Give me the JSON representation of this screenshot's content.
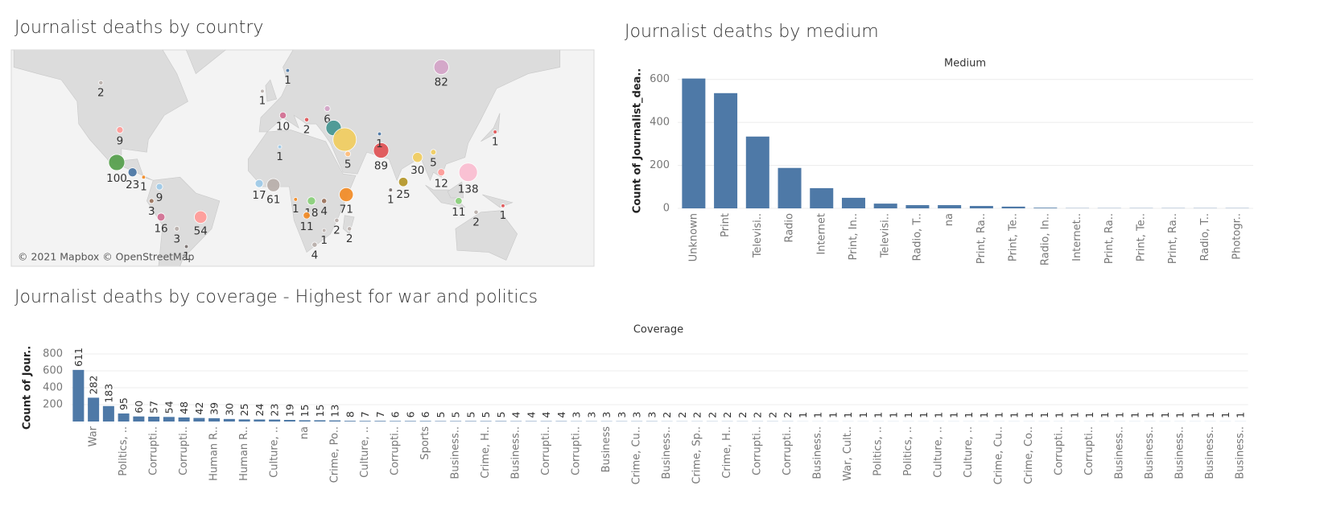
{
  "chart_data": [
    {
      "type": "map",
      "title": "Journalist deaths by country",
      "attribution": "© 2021 Mapbox © OpenStreetMap",
      "points": [
        {
          "lon": -110,
          "lat": 57,
          "value": 2,
          "color": "#bab0ac"
        },
        {
          "lon": -98,
          "lat": 37,
          "value": 9,
          "color": "#ff9d9a"
        },
        {
          "lon": -100,
          "lat": 19,
          "value": 100,
          "color": "#59a14f"
        },
        {
          "lon": -90,
          "lat": 13,
          "value": 23,
          "color": "#4e79a7"
        },
        {
          "lon": -83,
          "lat": 10,
          "value": 1,
          "color": "#f28e2b"
        },
        {
          "lon": -73,
          "lat": 4,
          "value": 9,
          "color": "#a0cbe8"
        },
        {
          "lon": -78,
          "lat": -5,
          "value": 3,
          "color": "#9d7660"
        },
        {
          "lon": -72,
          "lat": -15,
          "value": 16,
          "color": "#d37295"
        },
        {
          "lon": -62,
          "lat": -22,
          "value": 3,
          "color": "#bab0ac"
        },
        {
          "lon": -47,
          "lat": -15,
          "value": 54,
          "color": "#ff9d9a"
        },
        {
          "lon": -56,
          "lat": -32,
          "value": 1,
          "color": "#79706e"
        },
        {
          "lon": 105,
          "lat": 62,
          "value": 82,
          "color": "#d4a6c8"
        },
        {
          "lon": -8,
          "lat": 54,
          "value": 1,
          "color": "#bab0ac"
        },
        {
          "lon": 8,
          "lat": 61,
          "value": 1,
          "color": "#4e79a7"
        },
        {
          "lon": 33,
          "lat": 47,
          "value": 6,
          "color": "#d4a6c8"
        },
        {
          "lon": 5,
          "lat": 44,
          "value": 10,
          "color": "#d37295"
        },
        {
          "lon": 20,
          "lat": 42,
          "value": 2,
          "color": "#e15759"
        },
        {
          "lon": 3,
          "lat": 28,
          "value": 1,
          "color": "#a0cbe8"
        },
        {
          "lon": 37,
          "lat": 38,
          "value": 90,
          "color": "#499894",
          "label": false
        },
        {
          "lon": 44,
          "lat": 32,
          "value": 235,
          "color": "#f1ce63",
          "label": false
        },
        {
          "lon": 46,
          "lat": 24,
          "value": 5,
          "color": "#ffbe7d"
        },
        {
          "lon": 67,
          "lat": 26,
          "value": 89,
          "color": "#e15759"
        },
        {
          "lon": 66,
          "lat": 35,
          "value": 1,
          "color": "#4e79a7"
        },
        {
          "lon": 100,
          "lat": 25,
          "value": 5,
          "color": "#f1ce63"
        },
        {
          "lon": 90,
          "lat": 22,
          "value": 30,
          "color": "#f1ce63"
        },
        {
          "lon": 139,
          "lat": 36,
          "value": 1,
          "color": "#e15759"
        },
        {
          "lon": 122,
          "lat": 13,
          "value": 138,
          "color": "#fabfd2"
        },
        {
          "lon": 105,
          "lat": 13,
          "value": 12,
          "color": "#ff9d9a"
        },
        {
          "lon": 116,
          "lat": -5,
          "value": 11,
          "color": "#8cd17d"
        },
        {
          "lon": 127,
          "lat": -12,
          "value": 2,
          "color": "#bab0ac"
        },
        {
          "lon": 144,
          "lat": -8,
          "value": 1,
          "color": "#e15759"
        },
        {
          "lon": 81,
          "lat": 7,
          "value": 25,
          "color": "#b6992d"
        },
        {
          "lon": 73,
          "lat": 2,
          "value": 1,
          "color": "#79706e"
        },
        {
          "lon": -10,
          "lat": 6,
          "value": 17,
          "color": "#a0cbe8"
        },
        {
          "lon": -1,
          "lat": 5,
          "value": 61,
          "color": "#bab0ac"
        },
        {
          "lon": 13,
          "lat": -4,
          "value": 1,
          "color": "#f28e2b"
        },
        {
          "lon": 23,
          "lat": -5,
          "value": 18,
          "color": "#8cd17d"
        },
        {
          "lon": 31,
          "lat": -5,
          "value": 4,
          "color": "#9d7660"
        },
        {
          "lon": 45,
          "lat": -1,
          "value": 71,
          "color": "#f28e2b"
        },
        {
          "lon": 20,
          "lat": -14,
          "value": 11,
          "color": "#f28e2b"
        },
        {
          "lon": 31,
          "lat": -23,
          "value": 1,
          "color": "#bab0ac"
        },
        {
          "lon": 39,
          "lat": -17,
          "value": 2,
          "color": "#bab0ac"
        },
        {
          "lon": 47,
          "lat": -22,
          "value": 2,
          "color": "#bab0ac"
        },
        {
          "lon": 25,
          "lat": -31,
          "value": 4,
          "color": "#bab0ac"
        }
      ]
    },
    {
      "type": "bar",
      "title": "Journalist deaths by medium",
      "header": "Medium",
      "y_label": "Count of Journalist_dea..",
      "categories": [
        "Unknown",
        "Print",
        "Televisi..",
        "Radio",
        "Internet",
        "Print, In..",
        "Televisi..",
        "Radio, T..",
        "na",
        "Print, Ra..",
        "Print, Te..",
        "Radio, In..",
        "Internet..",
        "Print, Ra..",
        "Print, Te..",
        "Print, Ra..",
        "Radio, T..",
        "Photogr.."
      ],
      "values": [
        604,
        536,
        334,
        188,
        94,
        49,
        22,
        15,
        15,
        11,
        8,
        3,
        1,
        1,
        1,
        1,
        1,
        1
      ],
      "color": "#4e79a7",
      "ylim": [
        0,
        640
      ],
      "yticks": [
        0,
        200,
        400,
        600
      ],
      "grid": true
    },
    {
      "type": "bar",
      "title": "Journalist deaths by coverage - Highest for war and politics",
      "header": "Coverage",
      "y_label": "Count of Jour..",
      "categories": [
        null,
        "War",
        null,
        "Politics, ..",
        null,
        "Corrupti..",
        null,
        "Corrupti..",
        null,
        "Human R..",
        null,
        "Human R..",
        null,
        "Culture, ..",
        null,
        "na",
        null,
        "Crime, Po..",
        null,
        "Culture, ..",
        null,
        "Corrupti..",
        null,
        "Sports",
        null,
        "Business..",
        null,
        "Crime, H..",
        null,
        "Business..",
        null,
        "Corrupti..",
        null,
        "Corrupti..",
        null,
        "Business",
        null,
        "Crime, Cu..",
        null,
        "Business..",
        null,
        "Crime, Sp..",
        null,
        "Crime, H..",
        null,
        "Corrupti..",
        null,
        "Corrupti..",
        null,
        "Business..",
        null,
        "War, Cult..",
        null,
        "Politics, ..",
        null,
        "Politics, ..",
        null,
        "Culture, ..",
        null,
        "Culture, ..",
        null,
        "Crime, Cu..",
        null,
        "Crime, Co..",
        null,
        "Corrupti..",
        null,
        "Corrupti..",
        null,
        "Business..",
        null,
        "Business..",
        null,
        "Business..",
        null,
        "Business..",
        null,
        "Business.."
      ],
      "values": [
        611,
        282,
        183,
        95,
        60,
        57,
        54,
        48,
        42,
        39,
        30,
        25,
        24,
        23,
        19,
        15,
        15,
        13,
        8,
        7,
        7,
        6,
        6,
        6,
        5,
        5,
        5,
        5,
        5,
        4,
        4,
        4,
        4,
        3,
        3,
        3,
        3,
        3,
        3,
        2,
        2,
        2,
        2,
        2,
        2,
        2,
        2,
        2,
        1,
        1,
        1,
        1,
        1,
        1,
        1,
        1,
        1,
        1,
        1,
        1,
        1,
        1,
        1,
        1,
        1,
        1,
        1,
        1,
        1,
        1,
        1,
        1,
        1,
        1,
        1,
        1,
        1,
        1
      ],
      "data_labels": true,
      "color": "#4e79a7",
      "ylim": [
        0,
        800
      ],
      "yticks": [
        200,
        400,
        600,
        800
      ],
      "grid": true
    }
  ]
}
